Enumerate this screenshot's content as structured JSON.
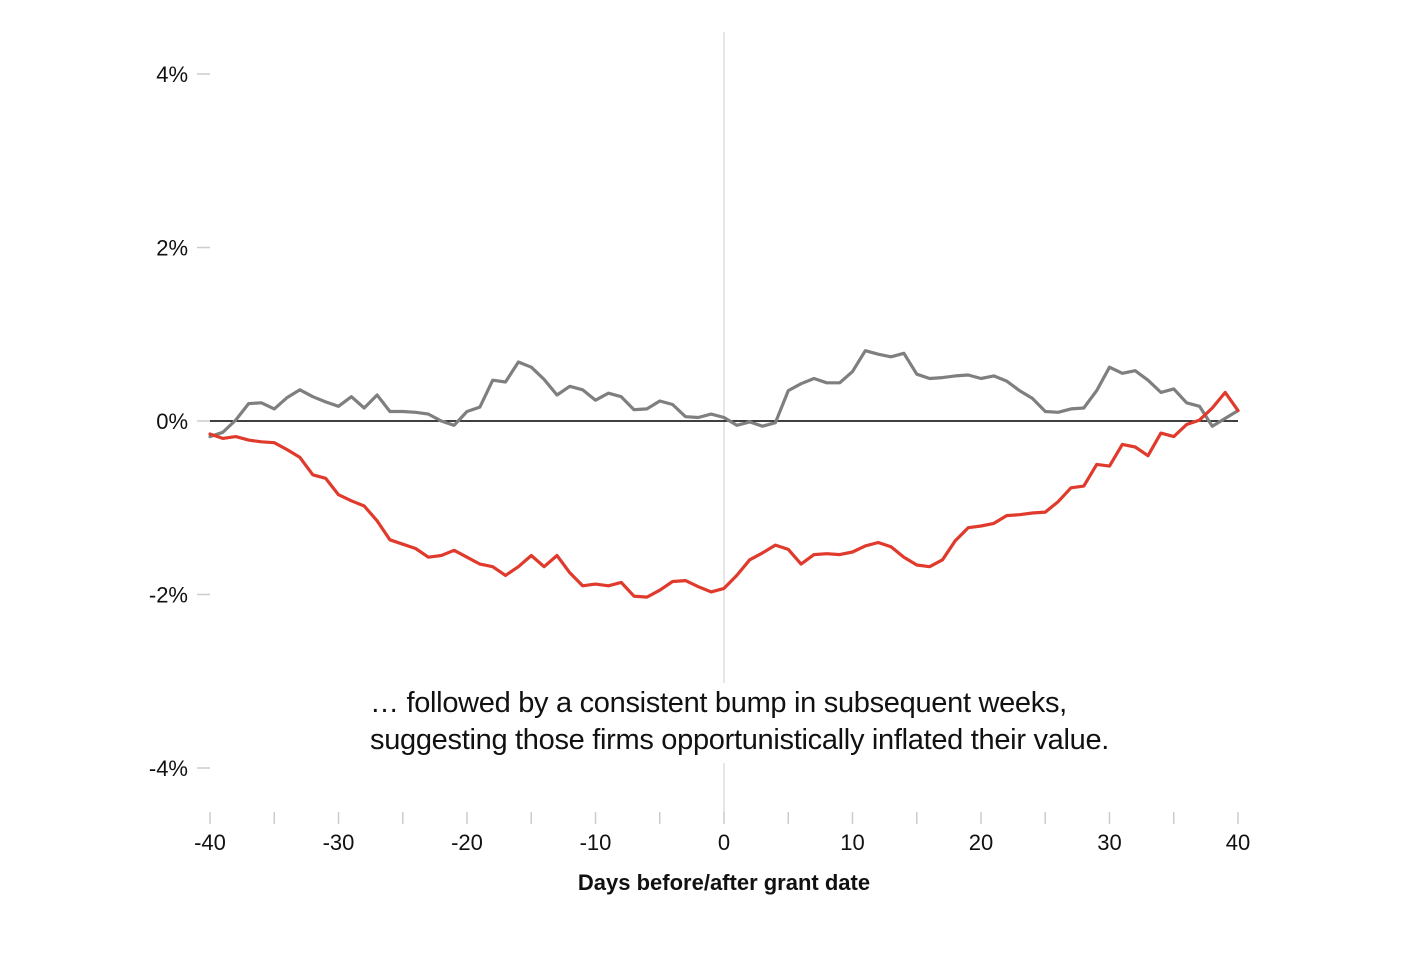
{
  "chart_data": {
    "type": "line",
    "xlabel": "Days before/after grant date",
    "ylabel": "",
    "xlim": [
      -40,
      40
    ],
    "ylim": [
      -4.5,
      4.5
    ],
    "x_ticks": [
      "-40",
      "-30",
      "-20",
      "-10",
      "0",
      "10",
      "20",
      "30",
      "40"
    ],
    "y_ticks": [
      "4%",
      "2%",
      "0%",
      "-2%",
      "-4%"
    ],
    "grid": false,
    "colors": {
      "red": "#e03a2c",
      "gray": "#7f7f7f",
      "zero_line": "#000000",
      "center_line": "#dddddd"
    },
    "annotation": "… followed by a consistent bump in subsequent weeks, suggesting those firms opportunistically inflated their value.",
    "series": [
      {
        "color": "#e03a2c",
        "x": [
          -40,
          -39,
          -38,
          -37,
          -36,
          -35,
          -34,
          -33,
          -32,
          -31,
          -30,
          -29,
          -28,
          -27,
          -26,
          -25,
          -24,
          -23,
          -22,
          -21,
          -20,
          -19,
          -18,
          -17,
          -16,
          -15,
          -14,
          -13,
          -12,
          -11,
          -10,
          -9,
          -8,
          -7,
          -6,
          -5,
          -4,
          -3,
          -2,
          -1,
          0,
          1,
          2,
          3,
          4,
          5,
          6,
          7,
          8,
          9,
          10,
          11,
          12,
          13,
          14,
          15,
          16,
          17,
          18,
          19,
          20,
          21,
          22,
          23,
          24,
          25,
          26,
          27,
          28,
          29,
          30,
          31,
          32,
          33,
          34,
          35,
          36,
          37,
          38,
          39,
          40
        ],
        "y": [
          -0.15,
          -0.2,
          -0.18,
          -0.22,
          -0.24,
          -0.25,
          -0.33,
          -0.42,
          -0.62,
          -0.66,
          -0.85,
          -0.92,
          -0.98,
          -1.15,
          -1.37,
          -1.42,
          -1.47,
          -1.57,
          -1.55,
          -1.49,
          -1.57,
          -1.65,
          -1.68,
          -1.78,
          -1.68,
          -1.55,
          -1.68,
          -1.55,
          -1.75,
          -1.9,
          -1.88,
          -1.9,
          -1.86,
          -2.02,
          -2.03,
          -1.95,
          -1.85,
          -1.84,
          -1.91,
          -1.97,
          -1.93,
          -1.78,
          -1.6,
          -1.52,
          -1.43,
          -1.48,
          -1.65,
          -1.54,
          -1.53,
          -1.54,
          -1.51,
          -1.44,
          -1.4,
          -1.45,
          -1.57,
          -1.66,
          -1.68,
          -1.6,
          -1.38,
          -1.23,
          -1.21,
          -1.18,
          -1.09,
          -1.08,
          -1.06,
          -1.05,
          -0.93,
          -0.77,
          -0.75,
          -0.5,
          -0.52,
          -0.27,
          -0.3,
          -0.4,
          -0.14,
          -0.18,
          -0.04,
          0.01,
          0.15,
          0.33,
          0.12
        ]
      },
      {
        "color": "#7f7f7f",
        "x": [
          -40,
          -39,
          -38,
          -37,
          -36,
          -35,
          -34,
          -33,
          -32,
          -31,
          -30,
          -29,
          -28,
          -27,
          -26,
          -25,
          -24,
          -23,
          -22,
          -21,
          -20,
          -19,
          -18,
          -17,
          -16,
          -15,
          -14,
          -13,
          -12,
          -11,
          -10,
          -9,
          -8,
          -7,
          -6,
          -5,
          -4,
          -3,
          -2,
          -1,
          0,
          1,
          2,
          3,
          4,
          5,
          6,
          7,
          8,
          9,
          10,
          11,
          12,
          13,
          14,
          15,
          16,
          17,
          18,
          19,
          20,
          21,
          22,
          23,
          24,
          25,
          26,
          27,
          28,
          29,
          30,
          31,
          32,
          33,
          34,
          35,
          36,
          37,
          38,
          39,
          40
        ],
        "y": [
          -0.18,
          -0.13,
          0.01,
          0.2,
          0.21,
          0.14,
          0.27,
          0.36,
          0.28,
          0.22,
          0.17,
          0.28,
          0.15,
          0.3,
          0.11,
          0.11,
          0.1,
          0.08,
          0.0,
          -0.05,
          0.11,
          0.16,
          0.47,
          0.45,
          0.68,
          0.62,
          0.48,
          0.3,
          0.4,
          0.36,
          0.24,
          0.32,
          0.28,
          0.13,
          0.14,
          0.23,
          0.19,
          0.05,
          0.04,
          0.08,
          0.04,
          -0.05,
          -0.01,
          -0.06,
          -0.02,
          0.35,
          0.43,
          0.49,
          0.44,
          0.44,
          0.57,
          0.81,
          0.77,
          0.74,
          0.78,
          0.54,
          0.49,
          0.5,
          0.52,
          0.53,
          0.49,
          0.52,
          0.46,
          0.35,
          0.26,
          0.11,
          0.1,
          0.14,
          0.15,
          0.35,
          0.62,
          0.55,
          0.58,
          0.47,
          0.33,
          0.37,
          0.21,
          0.17,
          -0.06,
          0.03,
          0.12
        ]
      }
    ]
  }
}
